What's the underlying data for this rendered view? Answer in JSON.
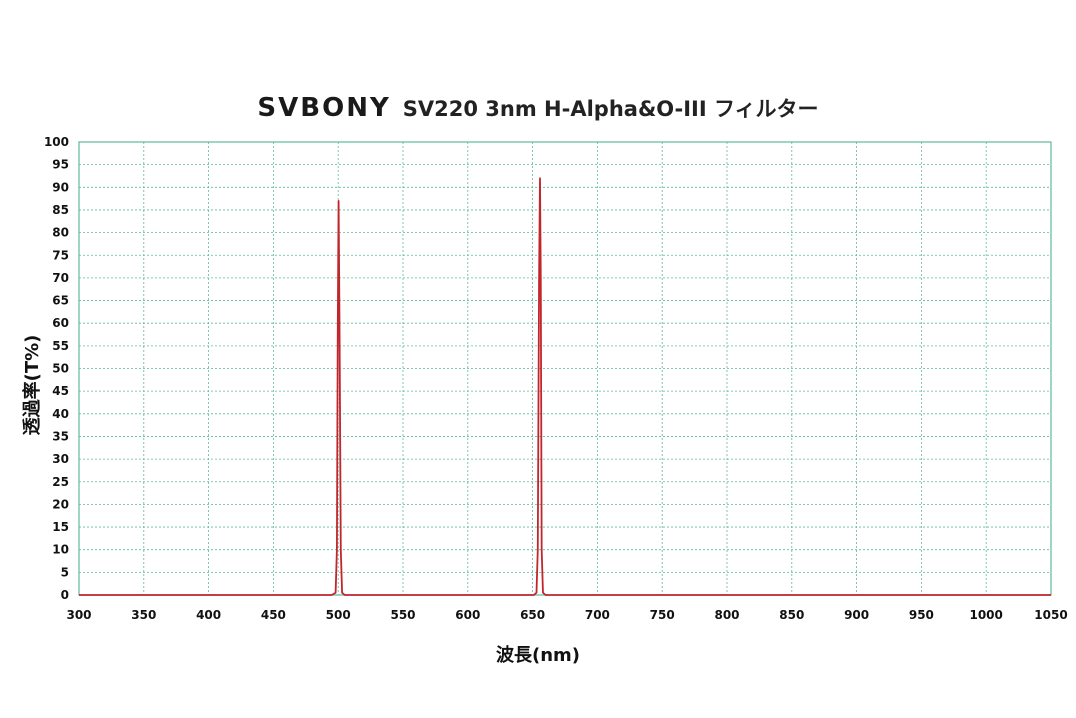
{
  "chart_data": {
    "type": "line",
    "brand": "SVBONY",
    "title": "SV220 3nm H-Alpha&O-III フィルター",
    "xlabel": "波長(nm)",
    "ylabel": "透過率(T%)",
    "xlim": [
      300,
      1050
    ],
    "ylim": [
      0,
      100
    ],
    "xticks": [
      300,
      350,
      400,
      450,
      500,
      550,
      600,
      650,
      700,
      750,
      800,
      850,
      900,
      950,
      1000,
      1050
    ],
    "yticks": [
      0,
      5,
      10,
      15,
      20,
      25,
      30,
      35,
      40,
      45,
      50,
      55,
      60,
      65,
      70,
      75,
      80,
      85,
      90,
      95,
      100
    ],
    "grid": true,
    "legend": "none",
    "colors": {
      "line": "#c0262c",
      "grid": "#5fb7a0",
      "frame": "#5fb7a0"
    },
    "series": [
      {
        "x": [
          300,
          495,
          498,
          499,
          499.7,
          500.3,
          501,
          502,
          503,
          505,
          651,
          653,
          654,
          655,
          655.7,
          656.3,
          657,
          658,
          660,
          1050
        ],
        "y": [
          0,
          0,
          0.5,
          10,
          60,
          87,
          60,
          10,
          0.5,
          0,
          0,
          0.5,
          10,
          70,
          92,
          70,
          10,
          0.5,
          0,
          0
        ]
      }
    ]
  }
}
